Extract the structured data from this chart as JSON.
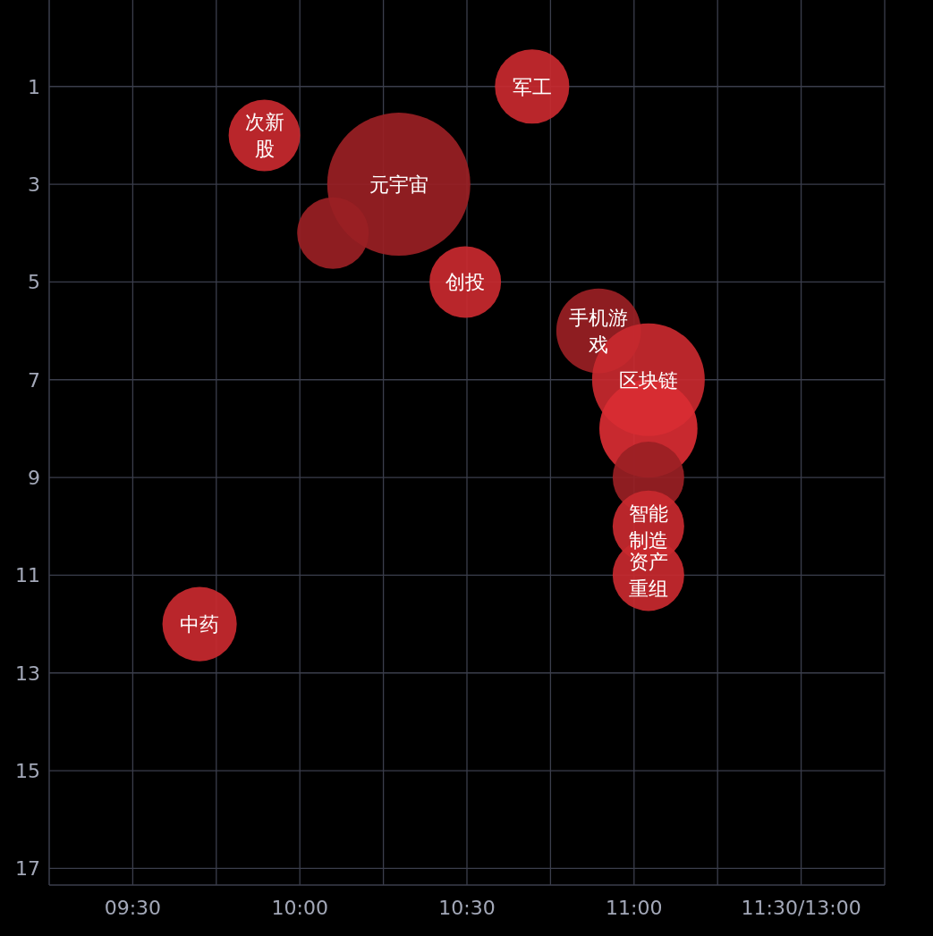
{
  "chart_data": {
    "type": "bubble",
    "xlim": [
      9.25,
      11.75
    ],
    "ylim": [
      17.34,
      -0.77
    ],
    "xticks": [
      {
        "value": 9.5,
        "label": "09:30"
      },
      {
        "value": 9.75,
        "label": null
      },
      {
        "value": 10,
        "label": "10:00"
      },
      {
        "value": 10.25,
        "label": null
      },
      {
        "value": 10.5,
        "label": "10:30"
      },
      {
        "value": 10.75,
        "label": null
      },
      {
        "value": 11,
        "label": "11:00"
      },
      {
        "value": 11.25,
        "label": null
      },
      {
        "value": 11.5,
        "label": "11:30/13:00"
      }
    ],
    "yticks": [
      1,
      3,
      5,
      7,
      9,
      11,
      13,
      15,
      17
    ],
    "grid": true,
    "series": [
      {
        "x": [
          10.695,
          9.894,
          10.296,
          10.099,
          10.495,
          10.894,
          11.043,
          11.043,
          11.043,
          11.043,
          11.043,
          9.7
        ],
        "values": [
          1,
          2,
          3,
          4,
          5,
          6,
          7,
          8,
          9,
          10,
          11,
          12
        ],
        "sizes": [
          0.27,
          0.25,
          1,
          0.25,
          0.25,
          0.35,
          0.62,
          0.47,
          0.25,
          0.25,
          0.25,
          0.27
        ],
        "colors": [
          "#c9292f",
          "#c9292f",
          "#9a1f24",
          "#9a1f24",
          "#c9292f",
          "#9a1f24",
          "#c9292f",
          "#d92c33",
          "#9a1f24",
          "#c9292f",
          "#c9292f",
          "#c9292f"
        ]
      }
    ],
    "annotations": [
      {
        "text": "军工",
        "x": 10.695,
        "y": 1
      },
      {
        "text": "次新股",
        "x": 9.894,
        "y": 2
      },
      {
        "text": "元宇宙",
        "x": 10.296,
        "y": 3
      },
      {
        "text": "创投",
        "x": 10.495,
        "y": 5
      },
      {
        "text": "手机游戏",
        "x": 10.894,
        "y": 6
      },
      {
        "text": "区块链",
        "x": 11.043,
        "y": 7
      },
      {
        "text": "智能制造",
        "x": 11.043,
        "y": 10
      },
      {
        "text": "资产重组",
        "x": 11.043,
        "y": 11
      },
      {
        "text": "中药",
        "x": 9.7,
        "y": 12
      }
    ]
  }
}
